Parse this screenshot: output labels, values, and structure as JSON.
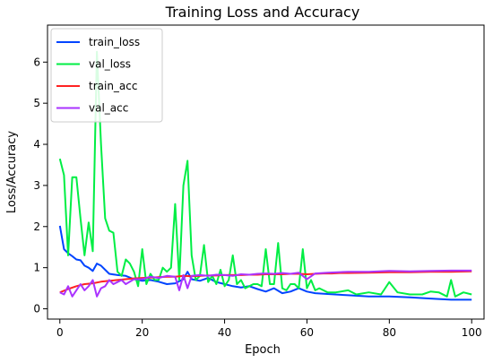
{
  "chart_data": {
    "type": "line",
    "title": "Training Loss and Accuracy",
    "xlabel": "Epoch",
    "ylabel": "Loss/Accuracy",
    "xlim": [
      -3,
      103
    ],
    "ylim": [
      -0.25,
      6.9
    ],
    "xticks": [
      0,
      20,
      40,
      60,
      80,
      100
    ],
    "yticks": [
      0,
      1,
      2,
      3,
      4,
      5,
      6
    ],
    "grid": false,
    "legend_position": "top-left",
    "series": [
      {
        "name": "train_loss",
        "color": "#0044ff",
        "x": [
          0,
          1,
          2,
          3,
          4,
          5,
          6,
          7,
          8,
          9,
          10,
          12,
          14,
          16,
          18,
          20,
          22,
          24,
          26,
          28,
          30,
          31,
          32,
          34,
          36,
          38,
          40,
          42,
          44,
          46,
          48,
          50,
          52,
          54,
          56,
          58,
          60,
          62,
          65,
          70,
          75,
          80,
          85,
          90,
          95,
          100
        ],
        "y": [
          2.02,
          1.45,
          1.35,
          1.28,
          1.2,
          1.18,
          1.05,
          1.0,
          0.92,
          1.1,
          1.05,
          0.85,
          0.82,
          0.8,
          0.72,
          0.68,
          0.7,
          0.66,
          0.6,
          0.62,
          0.72,
          0.9,
          0.72,
          0.68,
          0.75,
          0.65,
          0.6,
          0.55,
          0.52,
          0.55,
          0.48,
          0.42,
          0.5,
          0.38,
          0.42,
          0.5,
          0.42,
          0.38,
          0.36,
          0.33,
          0.3,
          0.3,
          0.28,
          0.25,
          0.22,
          0.22
        ]
      },
      {
        "name": "val_loss",
        "color": "#00ee44",
        "x": [
          0,
          1,
          2,
          3,
          4,
          5,
          6,
          7,
          8,
          9,
          10,
          11,
          12,
          13,
          14,
          15,
          16,
          17,
          18,
          19,
          20,
          21,
          22,
          23,
          24,
          25,
          26,
          27,
          28,
          29,
          30,
          31,
          32,
          33,
          34,
          35,
          36,
          37,
          38,
          39,
          40,
          41,
          42,
          43,
          44,
          45,
          46,
          47,
          48,
          49,
          50,
          51,
          52,
          53,
          54,
          55,
          56,
          57,
          58,
          59,
          60,
          61,
          62,
          63,
          64,
          65,
          67,
          70,
          72,
          75,
          78,
          80,
          82,
          85,
          88,
          90,
          92,
          94,
          95,
          96,
          98,
          100
        ],
        "y": [
          3.65,
          3.25,
          1.3,
          3.2,
          3.2,
          2.2,
          1.3,
          2.1,
          1.4,
          6.25,
          4.0,
          2.2,
          1.9,
          1.85,
          0.9,
          0.8,
          1.2,
          1.1,
          0.9,
          0.55,
          1.45,
          0.6,
          0.85,
          0.7,
          0.7,
          1.0,
          0.9,
          1.0,
          2.55,
          0.7,
          3.0,
          3.6,
          1.3,
          0.7,
          0.8,
          1.55,
          0.65,
          0.8,
          0.6,
          0.95,
          0.55,
          0.7,
          1.3,
          0.6,
          0.7,
          0.5,
          0.55,
          0.6,
          0.6,
          0.55,
          1.45,
          0.6,
          0.6,
          1.6,
          0.5,
          0.45,
          0.6,
          0.6,
          0.5,
          1.45,
          0.5,
          0.7,
          0.45,
          0.5,
          0.45,
          0.4,
          0.4,
          0.45,
          0.35,
          0.4,
          0.35,
          0.65,
          0.4,
          0.35,
          0.35,
          0.42,
          0.4,
          0.3,
          0.7,
          0.3,
          0.4,
          0.35
        ]
      },
      {
        "name": "train_acc",
        "color": "#ff2222",
        "x": [
          0,
          2,
          4,
          6,
          8,
          10,
          12,
          14,
          16,
          18,
          20,
          22,
          24,
          26,
          28,
          30,
          32,
          34,
          36,
          38,
          40,
          42,
          44,
          46,
          48,
          50,
          52,
          54,
          56,
          58,
          60,
          62,
          64,
          66,
          68,
          70,
          75,
          80,
          85,
          90,
          95,
          100
        ],
        "y": [
          0.4,
          0.48,
          0.55,
          0.6,
          0.62,
          0.66,
          0.68,
          0.7,
          0.72,
          0.74,
          0.75,
          0.76,
          0.77,
          0.78,
          0.78,
          0.8,
          0.79,
          0.8,
          0.81,
          0.81,
          0.82,
          0.82,
          0.82,
          0.83,
          0.83,
          0.84,
          0.84,
          0.84,
          0.85,
          0.85,
          0.84,
          0.85,
          0.86,
          0.86,
          0.87,
          0.87,
          0.88,
          0.89,
          0.89,
          0.9,
          0.9,
          0.91
        ]
      },
      {
        "name": "val_acc",
        "color": "#aa33ff",
        "x": [
          0,
          1,
          2,
          3,
          4,
          5,
          6,
          7,
          8,
          9,
          10,
          11,
          12,
          13,
          14,
          15,
          16,
          18,
          20,
          22,
          24,
          26,
          28,
          29,
          30,
          31,
          32,
          34,
          36,
          38,
          40,
          42,
          44,
          46,
          48,
          50,
          52,
          54,
          56,
          58,
          60,
          62,
          65,
          70,
          75,
          80,
          85,
          90,
          95,
          100
        ],
        "y": [
          0.4,
          0.35,
          0.55,
          0.3,
          0.45,
          0.6,
          0.45,
          0.55,
          0.7,
          0.3,
          0.5,
          0.55,
          0.7,
          0.6,
          0.65,
          0.7,
          0.6,
          0.72,
          0.72,
          0.78,
          0.75,
          0.8,
          0.78,
          0.45,
          0.82,
          0.5,
          0.8,
          0.82,
          0.8,
          0.83,
          0.82,
          0.8,
          0.84,
          0.83,
          0.85,
          0.86,
          0.85,
          0.87,
          0.85,
          0.88,
          0.72,
          0.86,
          0.88,
          0.9,
          0.9,
          0.92,
          0.91,
          0.92,
          0.93,
          0.93
        ]
      }
    ]
  }
}
